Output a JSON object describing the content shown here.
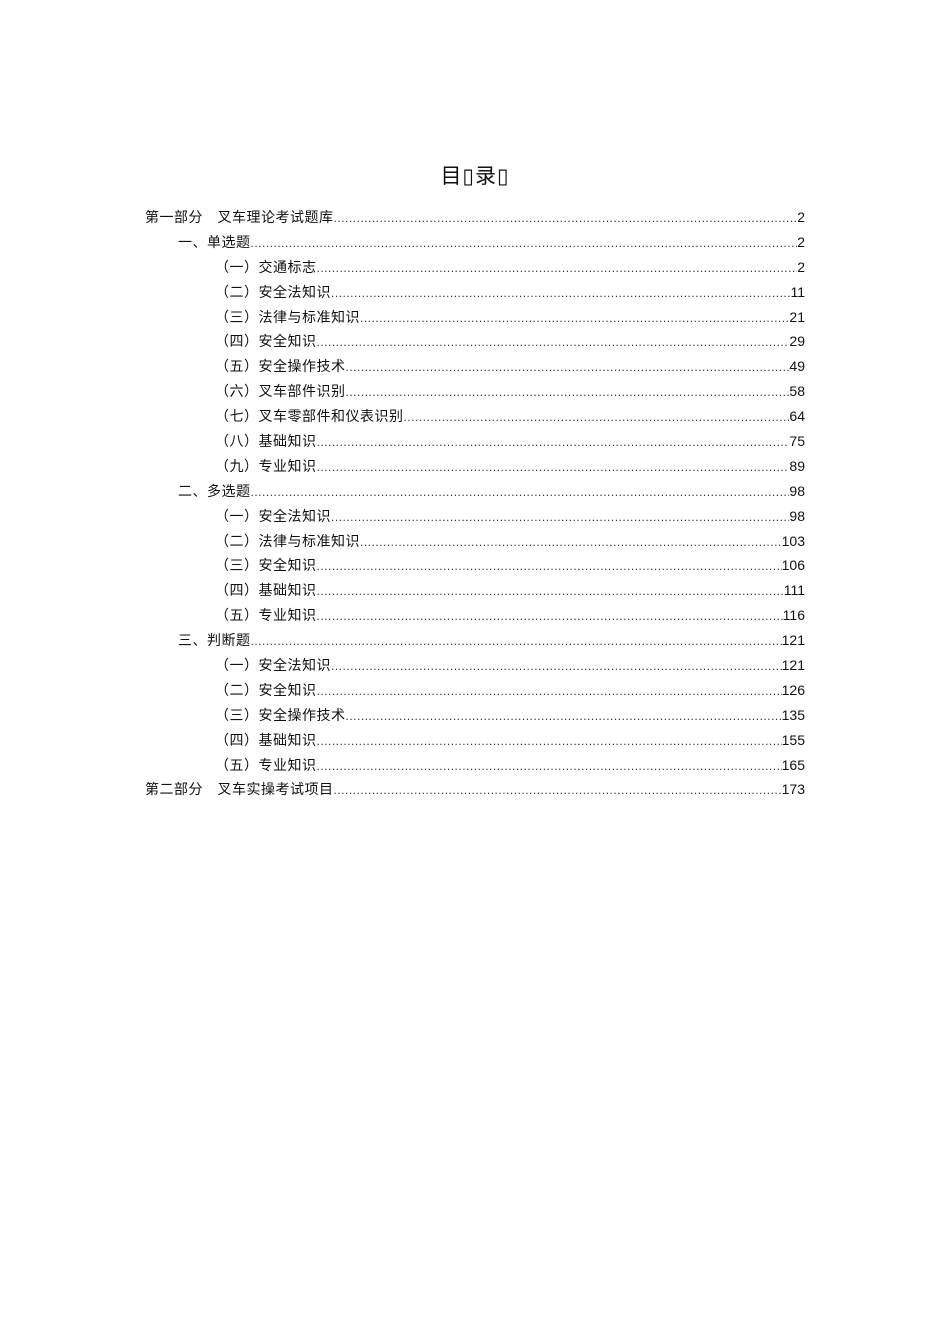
{
  "title": "目▯录▯",
  "toc": [
    {
      "level": 0,
      "label": "第一部分　叉车理论考试题库",
      "page": "2"
    },
    {
      "level": 1,
      "label": "一、单选题",
      "page": "2"
    },
    {
      "level": 2,
      "label": "（一）交通标志",
      "page": "2"
    },
    {
      "level": 2,
      "label": "（二）安全法知识",
      "page": "11"
    },
    {
      "level": 2,
      "label": "（三）法律与标准知识",
      "page": "21"
    },
    {
      "level": 2,
      "label": "（四）安全知识",
      "page": "29"
    },
    {
      "level": 2,
      "label": "（五）安全操作技术",
      "page": "49"
    },
    {
      "level": 2,
      "label": "（六）叉车部件识别",
      "page": "58"
    },
    {
      "level": 2,
      "label": "（七）叉车零部件和仪表识别",
      "page": "64"
    },
    {
      "level": 2,
      "label": "（八）基础知识",
      "page": "75"
    },
    {
      "level": 2,
      "label": "（九）专业知识",
      "page": "89"
    },
    {
      "level": 1,
      "label": "二、多选题",
      "page": "98"
    },
    {
      "level": 2,
      "label": "（一）安全法知识",
      "page": "98"
    },
    {
      "level": 2,
      "label": "（二）法律与标准知识",
      "page": "103"
    },
    {
      "level": 2,
      "label": "（三）安全知识",
      "page": "106"
    },
    {
      "level": 2,
      "label": "（四）基础知识",
      "page": "111"
    },
    {
      "level": 2,
      "label": "（五）专业知识",
      "page": "116"
    },
    {
      "level": 1,
      "label": "三、判断题",
      "page": "121"
    },
    {
      "level": 2,
      "label": "（一）安全法知识",
      "page": "121"
    },
    {
      "level": 2,
      "label": "（二）安全知识",
      "page": "126"
    },
    {
      "level": 2,
      "label": "（三）安全操作技术",
      "page": "135"
    },
    {
      "level": 2,
      "label": "（四）基础知识",
      "page": "155"
    },
    {
      "level": 2,
      "label": "（五）专业知识",
      "page": "165"
    },
    {
      "level": 0,
      "label": "第二部分　叉车实操考试项目",
      "page": "173"
    }
  ]
}
